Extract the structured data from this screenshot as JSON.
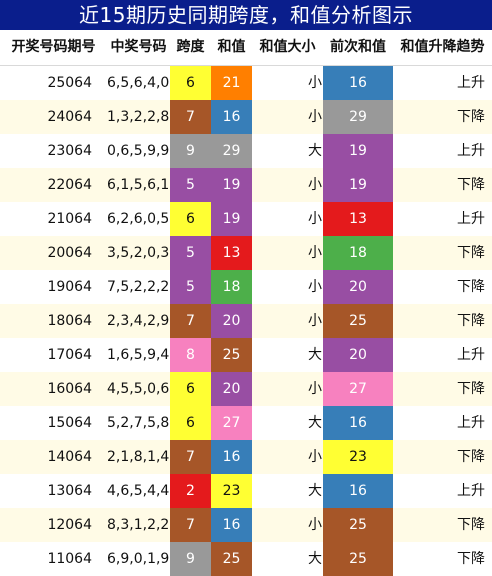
{
  "title": "近15期历史同期跨度，和值分析图示",
  "headers": [
    "开奖号码期号",
    "中奖号码",
    "跨度",
    "和值",
    "和值大小",
    "前次和值",
    "和值升降趋势"
  ],
  "rows": [
    {
      "period": "25064",
      "numbers": "6,5,6,4,0",
      "span": "6",
      "sum": "21",
      "size": "小",
      "prev_sum": "16",
      "trend": "上升",
      "span_color": "#ffff33",
      "sum_color": "#ff7f00",
      "prev_color": "#377eb8"
    },
    {
      "period": "24064",
      "numbers": "1,3,2,2,8",
      "span": "7",
      "sum": "16",
      "size": "小",
      "prev_sum": "29",
      "trend": "下降",
      "span_color": "#a65628",
      "sum_color": "#377eb8",
      "prev_color": "#999999"
    },
    {
      "period": "23064",
      "numbers": "0,6,5,9,9",
      "span": "9",
      "sum": "29",
      "size": "大",
      "prev_sum": "19",
      "trend": "上升",
      "span_color": "#999999",
      "sum_color": "#999999",
      "prev_color": "#984ea3"
    },
    {
      "period": "22064",
      "numbers": "6,1,5,6,1",
      "span": "5",
      "sum": "19",
      "size": "小",
      "prev_sum": "19",
      "trend": "下降",
      "span_color": "#984ea3",
      "sum_color": "#984ea3",
      "prev_color": "#984ea3"
    },
    {
      "period": "21064",
      "numbers": "6,2,6,0,5",
      "span": "6",
      "sum": "19",
      "size": "小",
      "prev_sum": "13",
      "trend": "上升",
      "span_color": "#ffff33",
      "sum_color": "#984ea3",
      "prev_color": "#e41a1c"
    },
    {
      "period": "20064",
      "numbers": "3,5,2,0,3",
      "span": "5",
      "sum": "13",
      "size": "小",
      "prev_sum": "18",
      "trend": "下降",
      "span_color": "#984ea3",
      "sum_color": "#e41a1c",
      "prev_color": "#4daf4a"
    },
    {
      "period": "19064",
      "numbers": "7,5,2,2,2",
      "span": "5",
      "sum": "18",
      "size": "小",
      "prev_sum": "20",
      "trend": "下降",
      "span_color": "#984ea3",
      "sum_color": "#4daf4a",
      "prev_color": "#984ea3"
    },
    {
      "period": "18064",
      "numbers": "2,3,4,2,9",
      "span": "7",
      "sum": "20",
      "size": "小",
      "prev_sum": "25",
      "trend": "下降",
      "span_color": "#a65628",
      "sum_color": "#984ea3",
      "prev_color": "#a65628"
    },
    {
      "period": "17064",
      "numbers": "1,6,5,9,4",
      "span": "8",
      "sum": "25",
      "size": "大",
      "prev_sum": "20",
      "trend": "上升",
      "span_color": "#f781bf",
      "sum_color": "#a65628",
      "prev_color": "#984ea3"
    },
    {
      "period": "16064",
      "numbers": "4,5,5,0,6",
      "span": "6",
      "sum": "20",
      "size": "小",
      "prev_sum": "27",
      "trend": "下降",
      "span_color": "#ffff33",
      "sum_color": "#984ea3",
      "prev_color": "#f781bf"
    },
    {
      "period": "15064",
      "numbers": "5,2,7,5,8",
      "span": "6",
      "sum": "27",
      "size": "大",
      "prev_sum": "16",
      "trend": "上升",
      "span_color": "#ffff33",
      "sum_color": "#f781bf",
      "prev_color": "#377eb8"
    },
    {
      "period": "14064",
      "numbers": "2,1,8,1,4",
      "span": "7",
      "sum": "16",
      "size": "小",
      "prev_sum": "23",
      "trend": "下降",
      "span_color": "#a65628",
      "sum_color": "#377eb8",
      "prev_color": "#ffff33"
    },
    {
      "period": "13064",
      "numbers": "4,6,5,4,4",
      "span": "2",
      "sum": "23",
      "size": "大",
      "prev_sum": "16",
      "trend": "上升",
      "span_color": "#e41a1c",
      "sum_color": "#ffff33",
      "prev_color": "#377eb8"
    },
    {
      "period": "12064",
      "numbers": "8,3,1,2,2",
      "span": "7",
      "sum": "16",
      "size": "小",
      "prev_sum": "25",
      "trend": "下降",
      "span_color": "#a65628",
      "sum_color": "#377eb8",
      "prev_color": "#a65628"
    },
    {
      "period": "11064",
      "numbers": "6,9,0,1,9",
      "span": "9",
      "sum": "25",
      "size": "大",
      "prev_sum": "25",
      "trend": "下降",
      "span_color": "#999999",
      "sum_color": "#a65628",
      "prev_color": "#a65628"
    }
  ]
}
